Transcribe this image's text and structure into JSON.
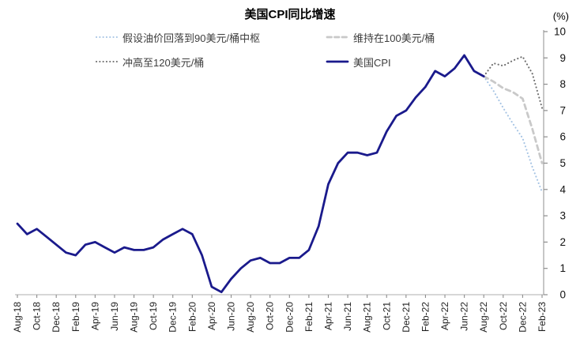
{
  "header": {
    "title": "美国CPI同比增速",
    "unit_label": "(%)"
  },
  "legend": {
    "items": [
      {
        "id": "oil-90",
        "label": "假设油价回落到90美元/桶中枢",
        "style": "dotted",
        "color": "#a6c4e4"
      },
      {
        "id": "oil-100",
        "label": "维持在100美元/桶",
        "style": "dashed",
        "color": "#c9c9c9"
      },
      {
        "id": "oil-120",
        "label": "冲高至120美元/桶",
        "style": "dotted",
        "color": "#6e6e6e"
      },
      {
        "id": "us-cpi",
        "label": "美国CPI",
        "style": "solid",
        "color": "#1a1a8c"
      }
    ]
  },
  "chart_data": {
    "type": "line",
    "title": "美国CPI同比增速",
    "ylabel": "(%)",
    "ylim": [
      0,
      10
    ],
    "y_ticks": [
      0,
      1,
      2,
      3,
      4,
      5,
      6,
      7,
      8,
      9,
      10
    ],
    "grid": false,
    "legend_position": "top",
    "x_months": [
      "Aug-18",
      "Sep-18",
      "Oct-18",
      "Nov-18",
      "Dec-18",
      "Jan-19",
      "Feb-19",
      "Mar-19",
      "Apr-19",
      "May-19",
      "Jun-19",
      "Jul-19",
      "Aug-19",
      "Sep-19",
      "Oct-19",
      "Nov-19",
      "Dec-19",
      "Jan-20",
      "Feb-20",
      "Mar-20",
      "Apr-20",
      "May-20",
      "Jun-20",
      "Jul-20",
      "Aug-20",
      "Sep-20",
      "Oct-20",
      "Nov-20",
      "Dec-20",
      "Jan-21",
      "Feb-21",
      "Mar-21",
      "Apr-21",
      "May-21",
      "Jun-21",
      "Jul-21",
      "Aug-21",
      "Sep-21",
      "Oct-21",
      "Nov-21",
      "Dec-21",
      "Jan-22",
      "Feb-22",
      "Mar-22",
      "Apr-22",
      "May-22",
      "Jun-22",
      "Jul-22",
      "Aug-22",
      "Sep-22",
      "Oct-22",
      "Nov-22",
      "Dec-22",
      "Jan-23",
      "Feb-23"
    ],
    "x_tick_labels": [
      "Aug-18",
      "Oct-18",
      "Dec-18",
      "Feb-19",
      "Apr-19",
      "Jun-19",
      "Aug-19",
      "Oct-19",
      "Dec-19",
      "Feb-20",
      "Apr-20",
      "Jun-20",
      "Aug-20",
      "Oct-20",
      "Dec-20",
      "Feb-21",
      "Apr-21",
      "Jun-21",
      "Aug-21",
      "Oct-21",
      "Dec-21",
      "Feb-22",
      "Apr-22",
      "Jun-22",
      "Aug-22",
      "Oct-22",
      "Dec-22",
      "Feb-23"
    ],
    "series": [
      {
        "id": "oil-90",
        "name": "假设油价回落到90美元/桶中枢",
        "color": "#a6c4e4",
        "style": "dotted",
        "start_index": 48,
        "values": [
          8.3,
          7.75,
          7.1,
          6.5,
          5.95,
          4.85,
          3.9
        ]
      },
      {
        "id": "oil-100",
        "name": "维持在100美元/桶",
        "color": "#c9c9c9",
        "style": "dashed",
        "start_index": 48,
        "values": [
          8.3,
          8.1,
          7.85,
          7.7,
          7.45,
          6.3,
          5.0
        ]
      },
      {
        "id": "oil-120",
        "name": "冲高至120美元/桶",
        "color": "#6e6e6e",
        "style": "dotted",
        "start_index": 48,
        "values": [
          8.3,
          8.8,
          8.7,
          8.9,
          9.05,
          8.4,
          7.1
        ]
      },
      {
        "id": "us-cpi",
        "name": "美国CPI",
        "color": "#1a1a8c",
        "style": "solid",
        "start_index": 0,
        "values": [
          2.7,
          2.3,
          2.5,
          2.2,
          1.9,
          1.6,
          1.5,
          1.9,
          2.0,
          1.8,
          1.6,
          1.8,
          1.7,
          1.7,
          1.8,
          2.1,
          2.3,
          2.5,
          2.3,
          1.5,
          0.3,
          0.1,
          0.6,
          1.0,
          1.3,
          1.4,
          1.2,
          1.2,
          1.4,
          1.4,
          1.7,
          2.6,
          4.2,
          5.0,
          5.4,
          5.4,
          5.3,
          5.4,
          6.2,
          6.8,
          7.0,
          7.5,
          7.9,
          8.5,
          8.3,
          8.6,
          9.1,
          8.5,
          8.3
        ]
      }
    ]
  }
}
